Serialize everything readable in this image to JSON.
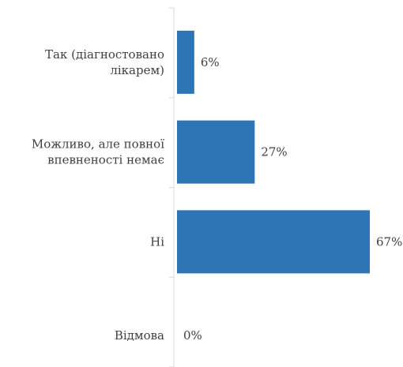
{
  "chart_data": {
    "type": "bar",
    "orientation": "horizontal",
    "categories": [
      [
        "Так (діагностовано",
        "лікарем)"
      ],
      [
        "Можливо, але повної",
        "впевненості немає"
      ],
      [
        "Ні"
      ],
      [
        "Відмова"
      ]
    ],
    "values": [
      6,
      27,
      67,
      0
    ],
    "value_labels": [
      "6%",
      "27%",
      "67%",
      "0%"
    ],
    "xlim": [
      0,
      70
    ],
    "grid": false,
    "legend": "none",
    "bar_color": "#2E75B6",
    "text_color": "#404040",
    "axis_color": "#D9D9D9"
  }
}
